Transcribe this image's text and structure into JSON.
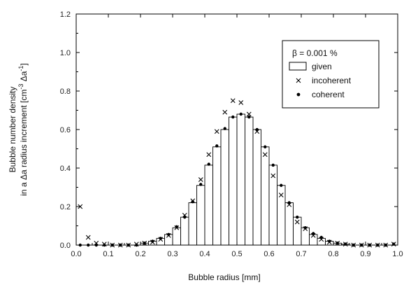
{
  "chart_data": {
    "type": "bar",
    "xlabel": "Bubble radius  [mm]",
    "ylabel_line1": "Bubble number density",
    "ylabel_line2": "in a Δa radius increment  [cm",
    "ylabel_sup1": "-3",
    "ylabel_mid": " Δa",
    "ylabel_sup2": "-1",
    "ylabel_end": "]",
    "xlim": [
      0.0,
      1.0
    ],
    "ylim": [
      0.0,
      1.2
    ],
    "xticks": [
      "0.0",
      "0.1",
      "0.2",
      "0.3",
      "0.4",
      "0.5",
      "0.6",
      "0.7",
      "0.8",
      "0.9",
      "1.0"
    ],
    "xtick_values": [
      0.0,
      0.1,
      0.2,
      0.3,
      0.4,
      0.5,
      0.6,
      0.7,
      0.8,
      0.9,
      1.0
    ],
    "yticks": [
      "0.0",
      "0.2",
      "0.4",
      "0.6",
      "0.8",
      "1.0",
      "1.2"
    ],
    "ytick_values": [
      0.0,
      0.2,
      0.4,
      0.6,
      0.8,
      1.0,
      1.2
    ],
    "bar_width": 0.025,
    "legend": {
      "title": "β = 0.001 %",
      "position": "top-right",
      "entries": [
        {
          "label": "given",
          "marker": "box"
        },
        {
          "label": "incoherent",
          "marker": "cross"
        },
        {
          "label": "coherent",
          "marker": "dot"
        }
      ]
    },
    "series": [
      {
        "name": "given",
        "x": [
          0.0125,
          0.0375,
          0.0625,
          0.0875,
          0.1125,
          0.1375,
          0.1625,
          0.1875,
          0.2125,
          0.2375,
          0.2625,
          0.2875,
          0.3125,
          0.3375,
          0.3625,
          0.3875,
          0.4125,
          0.4375,
          0.4625,
          0.4875,
          0.5125,
          0.5375,
          0.5625,
          0.5875,
          0.6125,
          0.6375,
          0.6625,
          0.6875,
          0.7125,
          0.7375,
          0.7625,
          0.7875,
          0.8125,
          0.8375,
          0.8625,
          0.8875,
          0.9125,
          0.9375,
          0.9625,
          0.9875
        ],
        "values": [
          0.0,
          0.0,
          0.0,
          0.0,
          0.0,
          0.0,
          0.0,
          0.0,
          0.01,
          0.02,
          0.035,
          0.055,
          0.09,
          0.145,
          0.22,
          0.31,
          0.415,
          0.51,
          0.6,
          0.665,
          0.68,
          0.665,
          0.6,
          0.51,
          0.415,
          0.31,
          0.22,
          0.145,
          0.09,
          0.055,
          0.035,
          0.02,
          0.01,
          0.005,
          0.0,
          0.0,
          0.0,
          0.0,
          0.0,
          0.0
        ]
      },
      {
        "name": "incoherent",
        "x": [
          0.0125,
          0.0375,
          0.0625,
          0.0875,
          0.1125,
          0.1375,
          0.1625,
          0.1875,
          0.2125,
          0.2375,
          0.2625,
          0.2875,
          0.3125,
          0.3375,
          0.3625,
          0.3875,
          0.4125,
          0.4375,
          0.4625,
          0.4875,
          0.5125,
          0.5375,
          0.5625,
          0.5875,
          0.6125,
          0.6375,
          0.6625,
          0.6875,
          0.7125,
          0.7375,
          0.7625,
          0.7875,
          0.8125,
          0.8375,
          0.8625,
          0.8875,
          0.9125,
          0.9375,
          0.9625,
          0.9875
        ],
        "values": [
          0.2,
          0.04,
          0.01,
          0.005,
          0.0,
          0.0,
          0.0,
          0.005,
          0.01,
          0.015,
          0.03,
          0.05,
          0.09,
          0.155,
          0.23,
          0.34,
          0.47,
          0.59,
          0.69,
          0.75,
          0.74,
          0.68,
          0.59,
          0.47,
          0.36,
          0.26,
          0.21,
          0.12,
          0.085,
          0.05,
          0.03,
          0.015,
          0.01,
          0.005,
          0.0,
          0.0,
          0.0,
          0.0,
          0.0,
          0.005
        ]
      },
      {
        "name": "coherent",
        "x": [
          0.0125,
          0.0375,
          0.0625,
          0.0875,
          0.1125,
          0.1375,
          0.1625,
          0.1875,
          0.2125,
          0.2375,
          0.2625,
          0.2875,
          0.3125,
          0.3375,
          0.3625,
          0.3875,
          0.4125,
          0.4375,
          0.4625,
          0.4875,
          0.5125,
          0.5375,
          0.5625,
          0.5875,
          0.6125,
          0.6375,
          0.6625,
          0.6875,
          0.7125,
          0.7375,
          0.7625,
          0.7875,
          0.8125,
          0.8375,
          0.8625,
          0.8875,
          0.9125,
          0.9375,
          0.9625,
          0.9875
        ],
        "values": [
          0.0,
          0.0,
          0.0,
          0.0,
          0.0,
          0.0,
          0.0,
          0.0,
          0.01,
          0.02,
          0.035,
          0.055,
          0.095,
          0.145,
          0.225,
          0.315,
          0.42,
          0.515,
          0.605,
          0.665,
          0.68,
          0.665,
          0.6,
          0.51,
          0.415,
          0.31,
          0.22,
          0.145,
          0.09,
          0.06,
          0.04,
          0.02,
          0.01,
          0.005,
          0.0,
          0.0,
          0.0,
          0.0,
          0.0,
          0.005
        ]
      }
    ]
  }
}
